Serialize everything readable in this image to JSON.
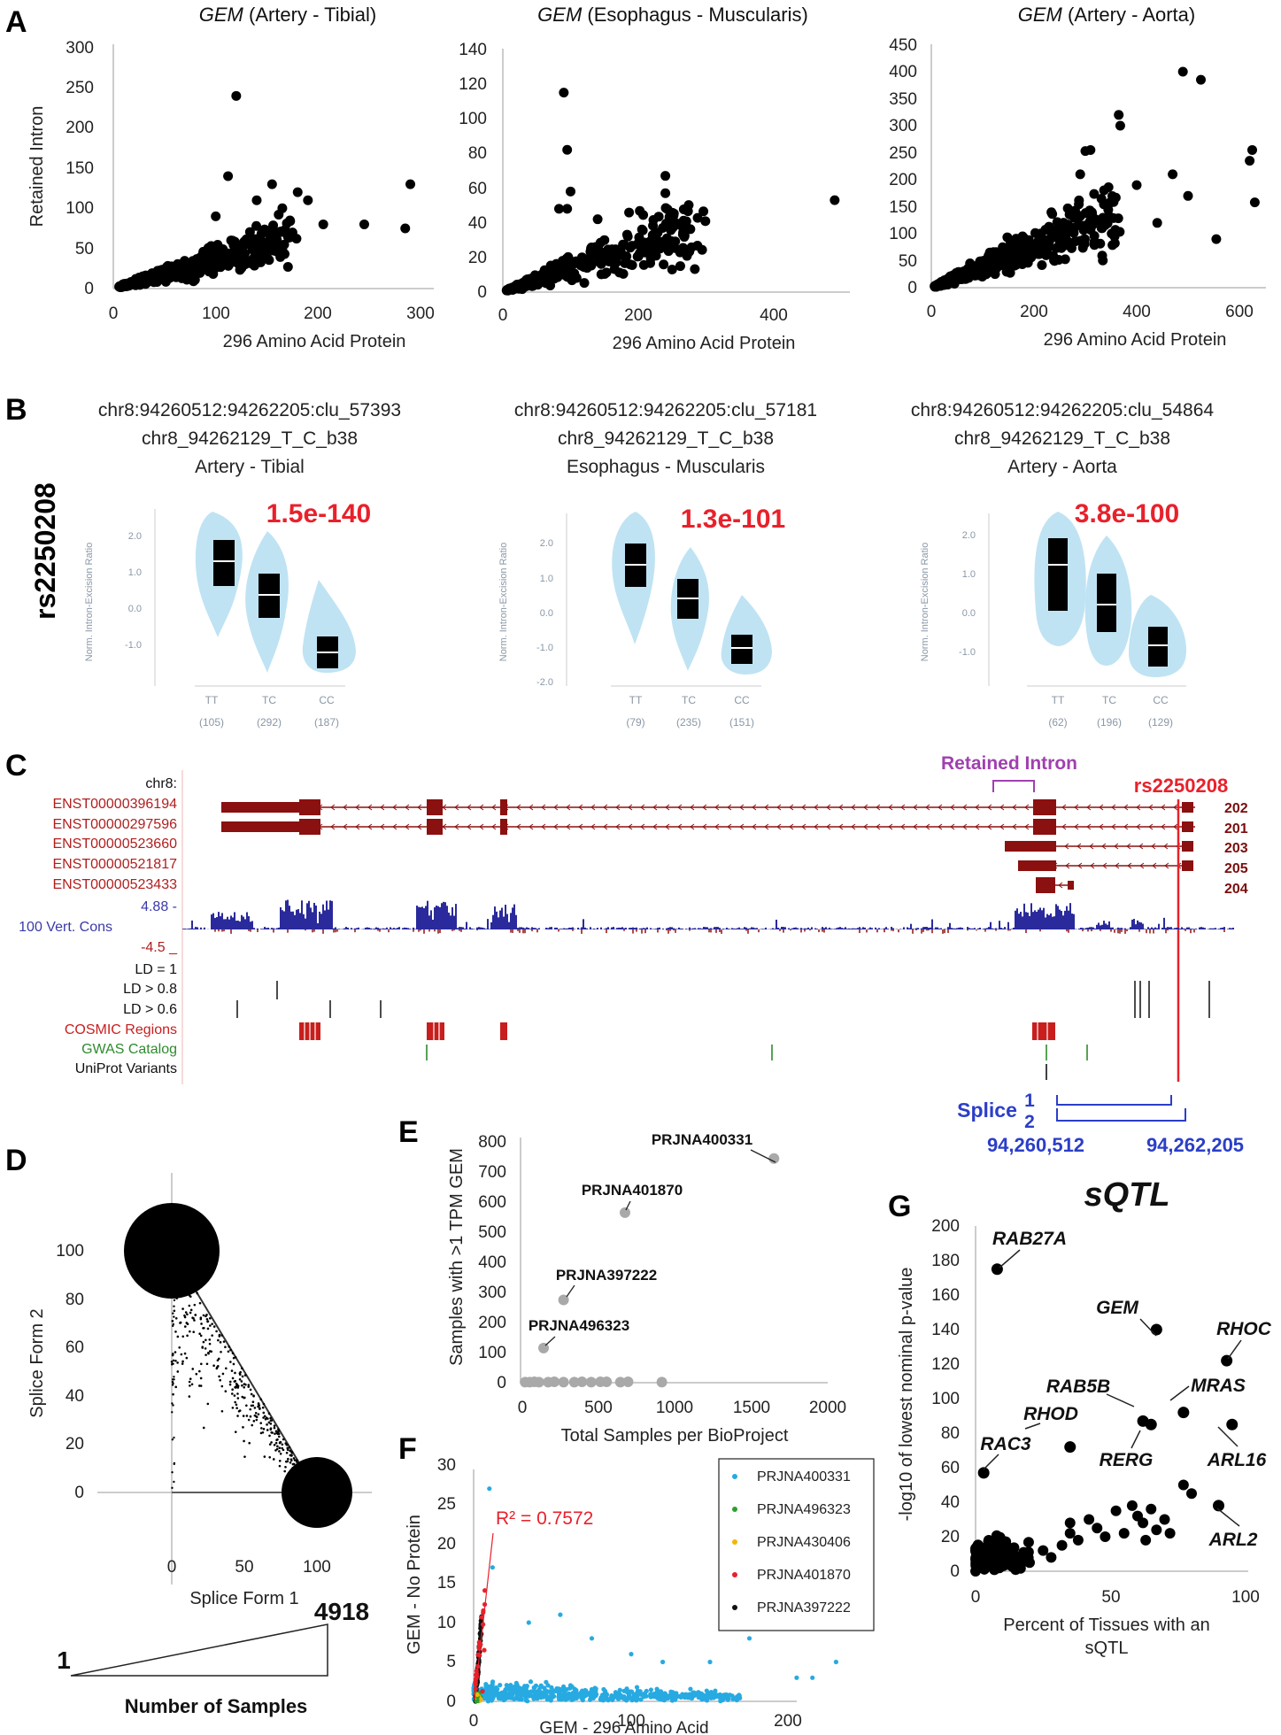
{
  "panelA": {
    "letter": "A",
    "plots": [
      {
        "gene": "GEM",
        "tissue": " (Artery - Tibial)",
        "ylabel": "Retained Intron",
        "xlabel": "296 Amino Acid Protein",
        "xticks": [
          "0",
          "100",
          "200",
          "300"
        ],
        "yticks": [
          "0",
          "50",
          "100",
          "150",
          "200",
          "250",
          "300"
        ]
      },
      {
        "gene": "GEM",
        "tissue": " (Esophagus - Muscularis)",
        "ylabel": "",
        "xlabel": "296 Amino Acid Protein",
        "xticks": [
          "0",
          "200",
          "400"
        ],
        "yticks": [
          "0",
          "20",
          "40",
          "60",
          "80",
          "100",
          "120",
          "140"
        ]
      },
      {
        "gene": "GEM",
        "tissue": " (Artery - Aorta)",
        "ylabel": "",
        "xlabel": "296 Amino Acid Protein",
        "xticks": [
          "0",
          "200",
          "400",
          "600"
        ],
        "yticks": [
          "0",
          "50",
          "100",
          "150",
          "200",
          "250",
          "300",
          "350",
          "400",
          "450"
        ]
      }
    ]
  },
  "panelB": {
    "letter": "B",
    "snp": "rs2250208",
    "ylabel": "Norm. Intron-Excision Ratio",
    "plots": [
      {
        "cluster": "chr8:94260512:94262205:clu_57393",
        "variant": "chr8_94262129_T_C_b38",
        "tissue": "Artery - Tibial",
        "pvalue": "1.5e-140",
        "yticks": [
          "2.0",
          "1.0",
          "0.0",
          "-1.0"
        ],
        "genotypes": [
          "TT",
          "TC",
          "CC"
        ],
        "counts": [
          "(105)",
          "(292)",
          "(187)"
        ]
      },
      {
        "cluster": "chr8:94260512:94262205:clu_57181",
        "variant": "chr8_94262129_T_C_b38",
        "tissue": "Esophagus - Muscularis",
        "pvalue": "1.3e-101",
        "yticks": [
          "2.0",
          "1.0",
          "0.0",
          "-1.0",
          "-2.0"
        ],
        "genotypes": [
          "TT",
          "TC",
          "CC"
        ],
        "counts": [
          "(79)",
          "(235)",
          "(151)"
        ]
      },
      {
        "cluster": "chr8:94260512:94262205:clu_54864",
        "variant": "chr8_94262129_T_C_b38",
        "tissue": "Artery - Aorta",
        "pvalue": "3.8e-100",
        "yticks": [
          "2.0",
          "1.0",
          "0.0",
          "-1.0"
        ],
        "genotypes": [
          "TT",
          "TC",
          "CC"
        ],
        "counts": [
          "(62)",
          "(196)",
          "(129)"
        ]
      }
    ]
  },
  "panelC": {
    "letter": "C",
    "chrom": "chr8:",
    "transcripts": [
      "ENST00000396194",
      "ENST00000297596",
      "ENST00000523660",
      "ENST00000521817",
      "ENST00000523433"
    ],
    "isoform_ids": [
      "202",
      "201",
      "203",
      "205",
      "204"
    ],
    "cons_max": "4.88 -",
    "cons_label": "100 Vert. Cons",
    "cons_min": "-4.5 _",
    "ld_labels": [
      "LD = 1",
      "LD > 0.8",
      "LD > 0.6"
    ],
    "cosmic": "COSMIC Regions",
    "gwas": "GWAS Catalog",
    "uniprot": "UniProt Variants",
    "retained_intron": "Retained Intron",
    "snp": "rs2250208",
    "splice_label": "Splice",
    "splice_1": "1",
    "splice_2": "2",
    "coord_left": "94,260,512",
    "coord_right": "94,262,205",
    "colors": {
      "gene": "#8b1010",
      "cons": "#2a2a9c",
      "snp": "#e8212b",
      "purple": "#a040b0",
      "blue": "#2b3ec9"
    }
  },
  "panelD": {
    "letter": "D",
    "xlabel": "Splice Form 1",
    "ylabel": "Splice Form 2",
    "xticks": [
      "0",
      "50",
      "100"
    ],
    "yticks": [
      "0",
      "20",
      "40",
      "60",
      "80",
      "100"
    ],
    "legend_min": "1",
    "legend_max": "4918",
    "legend_label": "Number of Samples"
  },
  "panelE": {
    "letter": "E",
    "xlabel": "Total Samples per BioProject",
    "ylabel": "Samples with >1 TPM GEM",
    "xticks": [
      "0",
      "500",
      "1000",
      "1500",
      "2000"
    ],
    "yticks": [
      "0",
      "100",
      "200",
      "300",
      "400",
      "500",
      "600",
      "700",
      "800"
    ],
    "labels": [
      "PRJNA400331",
      "PRJNA401870",
      "PRJNA397222",
      "PRJNA496323"
    ],
    "chart_data": {
      "type": "scatter",
      "points": [
        [
          1650,
          745
        ],
        [
          680,
          565
        ],
        [
          280,
          275
        ],
        [
          150,
          115
        ],
        [
          30,
          2
        ],
        [
          60,
          2
        ],
        [
          90,
          3
        ],
        [
          120,
          2
        ],
        [
          180,
          2
        ],
        [
          220,
          3
        ],
        [
          280,
          2
        ],
        [
          350,
          2
        ],
        [
          400,
          3
        ],
        [
          460,
          2
        ],
        [
          520,
          3
        ],
        [
          560,
          3
        ],
        [
          650,
          2
        ],
        [
          700,
          3
        ],
        [
          920,
          2
        ]
      ],
      "xlim": [
        0,
        2000
      ],
      "ylim": [
        0,
        800
      ]
    }
  },
  "panelF": {
    "letter": "F",
    "xlabel": "GEM - 296 Amino Acid",
    "ylabel": "GEM - No Protein",
    "xticks": [
      "0",
      "100",
      "200"
    ],
    "yticks": [
      "0",
      "5",
      "10",
      "15",
      "20",
      "25",
      "30"
    ],
    "r2": "R² = 0.7572",
    "legend": [
      {
        "name": "PRJNA400331",
        "color": "#27aae1"
      },
      {
        "name": "PRJNA496323",
        "color": "#2ca02c"
      },
      {
        "name": "PRJNA430406",
        "color": "#f2b705"
      },
      {
        "name": "PRJNA401870",
        "color": "#e8212b"
      },
      {
        "name": "PRJNA397222",
        "color": "#111111"
      }
    ]
  },
  "panelG": {
    "letter": "G",
    "title": "sQTL",
    "xlabel1": "Percent of Tissues with an",
    "xlabel2": "sQTL",
    "ylabel": "-log10 of lowest nominal p-value",
    "xticks": [
      "0",
      "50",
      "100"
    ],
    "yticks": [
      "0",
      "20",
      "40",
      "60",
      "80",
      "100",
      "120",
      "140",
      "160",
      "180",
      "200"
    ],
    "genes": [
      "RAB27A",
      "GEM",
      "RHOC",
      "MRAS",
      "RAB5B",
      "RHOD",
      "RERG",
      "RAC3",
      "ARL16",
      "ARL2"
    ],
    "chart_data": {
      "type": "scatter",
      "labeled": [
        {
          "gene": "RAB27A",
          "x": 8,
          "y": 175
        },
        {
          "gene": "GEM",
          "x": 67,
          "y": 140
        },
        {
          "gene": "RHOC",
          "x": 93,
          "y": 122
        },
        {
          "gene": "MRAS",
          "x": 77,
          "y": 92
        },
        {
          "gene": "RAB5B",
          "x": 62,
          "y": 87
        },
        {
          "gene": "RHOD",
          "x": 35,
          "y": 72
        },
        {
          "gene": "RERG",
          "x": 65,
          "y": 85
        },
        {
          "gene": "RAC3",
          "x": 3,
          "y": 57
        },
        {
          "gene": "ARL16",
          "x": 95,
          "y": 85
        },
        {
          "gene": "ARL2",
          "x": 90,
          "y": 38
        }
      ],
      "xlim": [
        0,
        100
      ],
      "ylim": [
        0,
        200
      ]
    }
  }
}
